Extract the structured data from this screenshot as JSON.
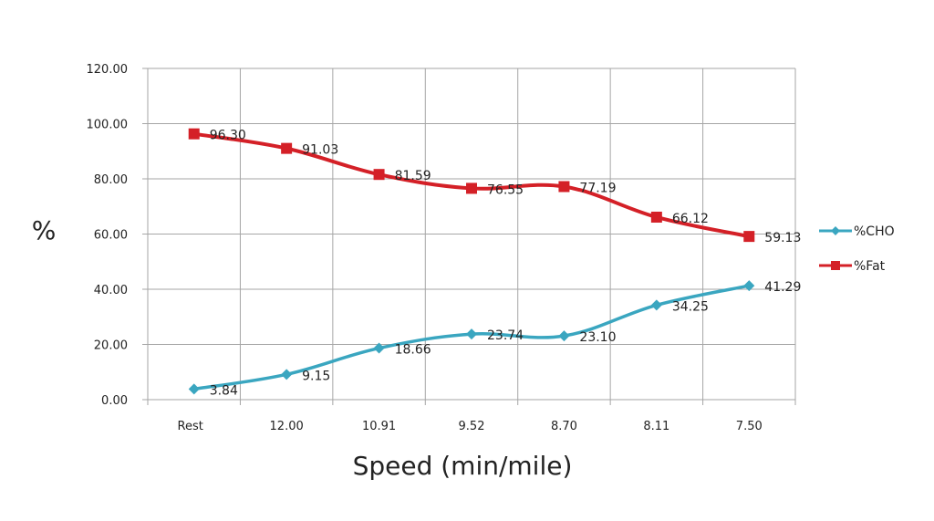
{
  "chart_data": {
    "type": "line",
    "xlabel": "Speed (min/mile)",
    "ylabel": "%",
    "categories": [
      "Rest",
      "12.00",
      "10.91",
      "9.52",
      "8.70",
      "8.11",
      "7.50"
    ],
    "ylim": [
      0,
      120
    ],
    "yticks": [
      "0.00",
      "20.00",
      "40.00",
      "60.00",
      "80.00",
      "100.00",
      "120.00"
    ],
    "grid": true,
    "legend_position": "right",
    "series": [
      {
        "name": "%CHO",
        "color": "#3aa6c0",
        "marker": "diamond",
        "values": [
          3.84,
          9.15,
          18.66,
          23.74,
          23.1,
          34.25,
          41.29
        ],
        "labels": [
          "3.84",
          "9.15",
          "18.66",
          "23.74",
          "23.10",
          "34.25",
          "41.29"
        ]
      },
      {
        "name": "%Fat",
        "color": "#d42027",
        "marker": "square",
        "values": [
          96.3,
          91.03,
          81.59,
          76.55,
          77.19,
          66.12,
          59.13
        ],
        "labels": [
          "96.30",
          "91.03",
          "81.59",
          "76.55",
          "77.19",
          "66.12",
          "59.13"
        ]
      }
    ]
  }
}
